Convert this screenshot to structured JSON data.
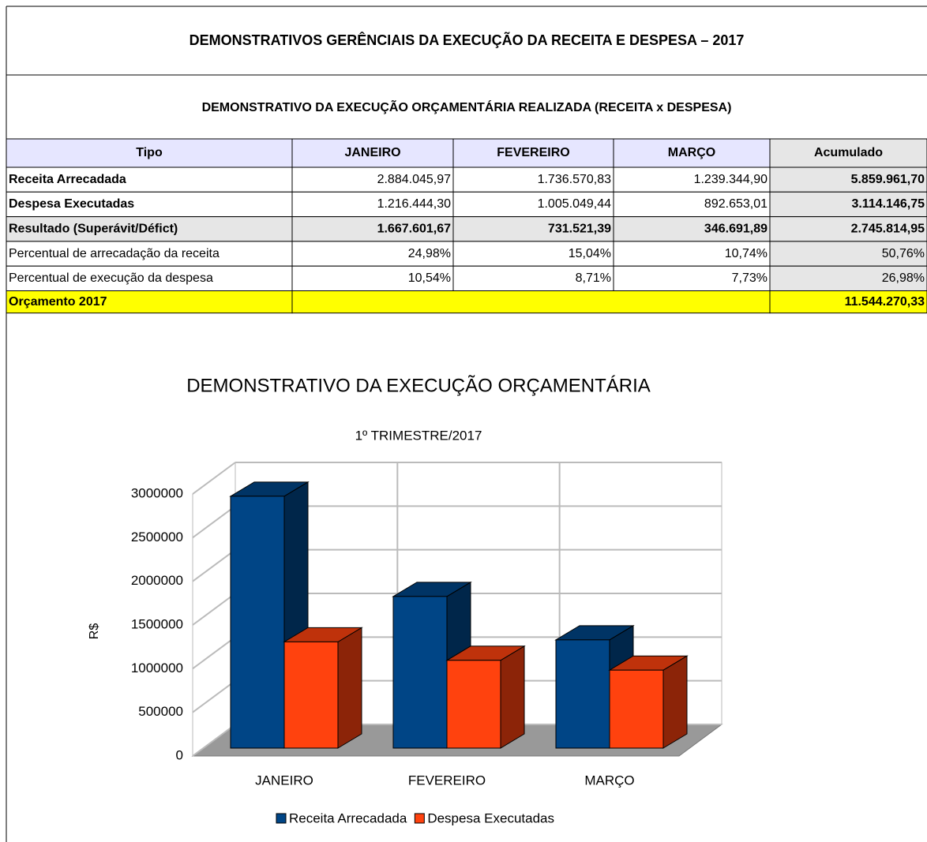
{
  "header": {
    "title": "DEMONSTRATIVOS GERÊNCIAIS DA EXECUÇÃO DA RECEITA E DESPESA – 2017",
    "subtitle": "DEMONSTRATIVO DA EXECUÇÃO ORÇAMENTÁRIA REALIZADA (RECEITA x DESPESA)"
  },
  "table": {
    "columns": [
      "Tipo",
      "JANEIRO",
      "FEVEREIRO",
      "MARÇO",
      "Acumulado"
    ],
    "rows": [
      [
        "Receita Arrecadada",
        "2.884.045,97",
        "1.736.570,83",
        "1.239.344,90",
        "5.859.961,70"
      ],
      [
        "Despesa Executadas",
        "1.216.444,30",
        "1.005.049,44",
        "892.653,01",
        "3.114.146,75"
      ],
      [
        "Resultado (Superávit/Défict)",
        "1.667.601,67",
        "731.521,39",
        "346.691,89",
        "2.745.814,95"
      ],
      [
        "Percentual de arrecadação da receita",
        "24,98%",
        "15,04%",
        "10,74%",
        "50,76%"
      ],
      [
        "Percentual de execução da despesa",
        "10,54%",
        "8,71%",
        "7,73%",
        "26,98%"
      ]
    ],
    "budget": {
      "label": "Orçamento 2017",
      "value": "11.544.270,33"
    }
  },
  "chart_data": {
    "type": "bar3d",
    "title": "DEMONSTRATIVO DA EXECUÇÃO ORÇAMENTÁRIA",
    "subtitle": "1º TRIMESTRE/2017",
    "y_label": "R$",
    "categories": [
      "JANEIRO",
      "FEVEREIRO",
      "MARÇO"
    ],
    "series": [
      {
        "name": "Receita Arrecadada",
        "color": "#004586",
        "values": [
          2884045.97,
          1736570.83,
          1239344.9
        ]
      },
      {
        "name": "Despesa Executadas",
        "color": "#ff420e",
        "values": [
          1216444.3,
          1005049.44,
          892653.01
        ]
      }
    ],
    "ylim": [
      0,
      3000000
    ],
    "yticks": [
      0,
      500000,
      1000000,
      1500000,
      2000000,
      2500000,
      3000000
    ],
    "grid": true
  }
}
